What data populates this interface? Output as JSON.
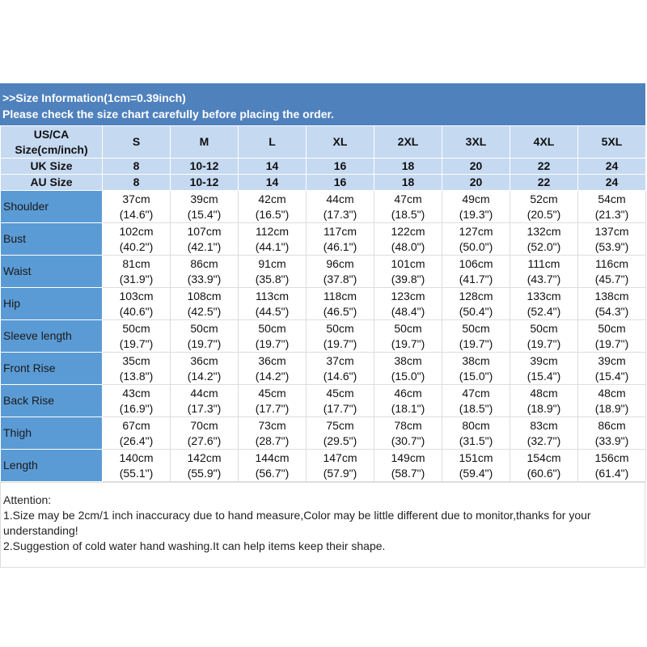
{
  "header": {
    "line1": ">>Size Information(1cm=0.39inch)",
    "line2": "Please check the size chart carefully before placing the order."
  },
  "table": {
    "header_rows": [
      {
        "label": [
          "US/CA",
          "Size(cm/inch)"
        ],
        "values": [
          "S",
          "M",
          "L",
          "XL",
          "2XL",
          "3XL",
          "4XL",
          "5XL"
        ]
      },
      {
        "label": [
          "UK Size"
        ],
        "values": [
          "8",
          "10-12",
          "14",
          "16",
          "18",
          "20",
          "22",
          "24"
        ]
      },
      {
        "label": [
          "AU Size"
        ],
        "values": [
          "8",
          "10-12",
          "14",
          "16",
          "18",
          "20",
          "22",
          "24"
        ]
      }
    ],
    "rows": [
      {
        "label": "Shoulder",
        "cells": [
          [
            "37cm",
            "(14.6\")"
          ],
          [
            "39cm",
            "(15.4\")"
          ],
          [
            "42cm",
            "(16.5\")"
          ],
          [
            "44cm",
            "(17.3\")"
          ],
          [
            "47cm",
            "(18.5\")"
          ],
          [
            "49cm",
            "(19.3\")"
          ],
          [
            "52cm",
            "(20.5\")"
          ],
          [
            "54cm",
            "(21.3\")"
          ]
        ]
      },
      {
        "label": "Bust",
        "cells": [
          [
            "102cm",
            "(40.2\")"
          ],
          [
            "107cm",
            "(42.1\")"
          ],
          [
            "112cm",
            "(44.1\")"
          ],
          [
            "117cm",
            "(46.1\")"
          ],
          [
            "122cm",
            "(48.0\")"
          ],
          [
            "127cm",
            "(50.0\")"
          ],
          [
            "132cm",
            "(52.0\")"
          ],
          [
            "137cm",
            "(53.9\")"
          ]
        ]
      },
      {
        "label": "Waist",
        "cells": [
          [
            "81cm",
            "(31.9\")"
          ],
          [
            "86cm",
            "(33.9\")"
          ],
          [
            "91cm",
            "(35.8\")"
          ],
          [
            "96cm",
            "(37.8\")"
          ],
          [
            "101cm",
            "(39.8\")"
          ],
          [
            "106cm",
            "(41.7\")"
          ],
          [
            "111cm",
            "(43.7\")"
          ],
          [
            "116cm",
            "(45.7\")"
          ]
        ]
      },
      {
        "label": "Hip",
        "cells": [
          [
            "103cm",
            "(40.6\")"
          ],
          [
            "108cm",
            "(42.5\")"
          ],
          [
            "113cm",
            "(44.5\")"
          ],
          [
            "118cm",
            "(46.5\")"
          ],
          [
            "123cm",
            "(48.4\")"
          ],
          [
            "128cm",
            "(50.4\")"
          ],
          [
            "133cm",
            "(52.4\")"
          ],
          [
            "138cm",
            "(54.3\")"
          ]
        ]
      },
      {
        "label": "Sleeve length",
        "cells": [
          [
            "50cm",
            "(19.7\")"
          ],
          [
            "50cm",
            "(19.7\")"
          ],
          [
            "50cm",
            "(19.7\")"
          ],
          [
            "50cm",
            "(19.7\")"
          ],
          [
            "50cm",
            "(19.7\")"
          ],
          [
            "50cm",
            "(19.7\")"
          ],
          [
            "50cm",
            "(19.7\")"
          ],
          [
            "50cm",
            "(19.7\")"
          ]
        ]
      },
      {
        "label": "Front Rise",
        "cells": [
          [
            "35cm",
            "(13.8\")"
          ],
          [
            "36cm",
            "(14.2\")"
          ],
          [
            "36cm",
            "(14.2\")"
          ],
          [
            "37cm",
            "(14.6\")"
          ],
          [
            "38cm",
            "(15.0\")"
          ],
          [
            "38cm",
            "(15.0\")"
          ],
          [
            "39cm",
            "(15.4\")"
          ],
          [
            "39cm",
            "(15.4\")"
          ]
        ]
      },
      {
        "label": "Back Rise",
        "cells": [
          [
            "43cm",
            "(16.9\")"
          ],
          [
            "44cm",
            "(17.3\")"
          ],
          [
            "45cm",
            "(17.7\")"
          ],
          [
            "45cm",
            "(17.7\")"
          ],
          [
            "46cm",
            "(18.1\")"
          ],
          [
            "47cm",
            "(18.5\")"
          ],
          [
            "48cm",
            "(18.9\")"
          ],
          [
            "48cm",
            "(18.9\")"
          ]
        ]
      },
      {
        "label": "Thigh",
        "cells": [
          [
            "67cm",
            "(26.4\")"
          ],
          [
            "70cm",
            "(27.6\")"
          ],
          [
            "73cm",
            "(28.7\")"
          ],
          [
            "75cm",
            "(29.5\")"
          ],
          [
            "78cm",
            "(30.7\")"
          ],
          [
            "80cm",
            "(31.5\")"
          ],
          [
            "83cm",
            "(32.7\")"
          ],
          [
            "86cm",
            "(33.9\")"
          ]
        ]
      },
      {
        "label": "Length",
        "cells": [
          [
            "140cm",
            "(55.1\")"
          ],
          [
            "142cm",
            "(55.9\")"
          ],
          [
            "144cm",
            "(56.7\")"
          ],
          [
            "147cm",
            "(57.9\")"
          ],
          [
            "149cm",
            "(58.7\")"
          ],
          [
            "151cm",
            "(59.4\")"
          ],
          [
            "154cm",
            "(60.6\")"
          ],
          [
            "156cm",
            "(61.4\")"
          ]
        ]
      }
    ]
  },
  "notes": {
    "title": "Attention:",
    "items": [
      "1.Size may be 2cm/1 inch inaccuracy due to hand measure,Color may be little different due to monitor,thanks for your understanding!",
      "2.Suggestion of cold water hand washing.It can help items keep their shape."
    ]
  }
}
